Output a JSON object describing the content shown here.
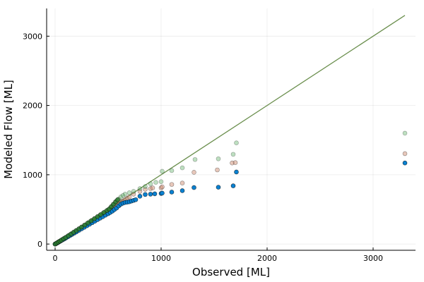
{
  "chart_data": {
    "type": "scatter",
    "title": "",
    "xlabel": "Observed [ML]",
    "ylabel": "Modeled Flow [ML]",
    "xlim": [
      -80,
      3400
    ],
    "ylim": [
      -90,
      3400
    ],
    "x_ticks": [
      0,
      1000,
      2000,
      3000
    ],
    "y_ticks": [
      0,
      1000,
      2000,
      3000
    ],
    "grid": true,
    "legend": "none",
    "reference_line": {
      "x": [
        0,
        3300
      ],
      "y": [
        0,
        3300
      ],
      "color": "#6b8f4e"
    },
    "series": [
      {
        "color": "#cf8f75",
        "opacity": 0.5,
        "points": [
          [
            0,
            0
          ],
          [
            10,
            8
          ],
          [
            20,
            17
          ],
          [
            30,
            27
          ],
          [
            40,
            36
          ],
          [
            55,
            50
          ],
          [
            70,
            63
          ],
          [
            85,
            77
          ],
          [
            100,
            90
          ],
          [
            120,
            108
          ],
          [
            140,
            126
          ],
          [
            160,
            144
          ],
          [
            180,
            162
          ],
          [
            200,
            180
          ],
          [
            225,
            203
          ],
          [
            250,
            226
          ],
          [
            275,
            249
          ],
          [
            300,
            272
          ],
          [
            325,
            295
          ],
          [
            350,
            318
          ],
          [
            375,
            340
          ],
          [
            400,
            362
          ],
          [
            425,
            385
          ],
          [
            450,
            408
          ],
          [
            475,
            430
          ],
          [
            500,
            452
          ],
          [
            520,
            470
          ],
          [
            540,
            500
          ],
          [
            560,
            530
          ],
          [
            580,
            560
          ],
          [
            600,
            590
          ],
          [
            620,
            610
          ],
          [
            640,
            620
          ],
          [
            660,
            640
          ],
          [
            680,
            660
          ],
          [
            700,
            680
          ],
          [
            740,
            720
          ],
          [
            800,
            760
          ],
          [
            850,
            790
          ],
          [
            900,
            800
          ],
          [
            920,
            810
          ],
          [
            1000,
            810
          ],
          [
            1010,
            825
          ],
          [
            1100,
            860
          ],
          [
            1200,
            880
          ],
          [
            1310,
            1035
          ],
          [
            1530,
            1070
          ],
          [
            1670,
            1170
          ],
          [
            1700,
            1175
          ],
          [
            3300,
            1305
          ]
        ]
      },
      {
        "color": "#41a34a",
        "opacity": 0.35,
        "points": [
          [
            0,
            0
          ],
          [
            10,
            9
          ],
          [
            20,
            19
          ],
          [
            30,
            29
          ],
          [
            40,
            39
          ],
          [
            55,
            54
          ],
          [
            70,
            68
          ],
          [
            85,
            83
          ],
          [
            100,
            97
          ],
          [
            120,
            117
          ],
          [
            140,
            137
          ],
          [
            160,
            157
          ],
          [
            180,
            177
          ],
          [
            200,
            197
          ],
          [
            225,
            221
          ],
          [
            250,
            246
          ],
          [
            275,
            271
          ],
          [
            300,
            296
          ],
          [
            325,
            321
          ],
          [
            350,
            346
          ],
          [
            375,
            371
          ],
          [
            400,
            395
          ],
          [
            425,
            420
          ],
          [
            450,
            445
          ],
          [
            475,
            470
          ],
          [
            500,
            495
          ],
          [
            520,
            520
          ],
          [
            540,
            550
          ],
          [
            560,
            580
          ],
          [
            580,
            620
          ],
          [
            600,
            650
          ],
          [
            620,
            680
          ],
          [
            640,
            700
          ],
          [
            660,
            720
          ],
          [
            700,
            740
          ],
          [
            740,
            760
          ],
          [
            800,
            800
          ],
          [
            850,
            830
          ],
          [
            900,
            870
          ],
          [
            950,
            890
          ],
          [
            1000,
            900
          ],
          [
            1010,
            1050
          ],
          [
            1100,
            1060
          ],
          [
            1200,
            1100
          ],
          [
            1320,
            1220
          ],
          [
            1540,
            1230
          ],
          [
            1680,
            1295
          ],
          [
            1710,
            1460
          ],
          [
            3300,
            1600
          ]
        ]
      },
      {
        "color": "#0a81d1",
        "opacity": 1.0,
        "points": [
          [
            0,
            0
          ],
          [
            10,
            7
          ],
          [
            20,
            16
          ],
          [
            30,
            25
          ],
          [
            40,
            34
          ],
          [
            55,
            47
          ],
          [
            70,
            60
          ],
          [
            85,
            73
          ],
          [
            100,
            86
          ],
          [
            120,
            104
          ],
          [
            140,
            122
          ],
          [
            160,
            140
          ],
          [
            180,
            158
          ],
          [
            200,
            175
          ],
          [
            225,
            198
          ],
          [
            250,
            220
          ],
          [
            275,
            242
          ],
          [
            300,
            264
          ],
          [
            325,
            286
          ],
          [
            350,
            308
          ],
          [
            375,
            330
          ],
          [
            400,
            352
          ],
          [
            425,
            374
          ],
          [
            450,
            395
          ],
          [
            475,
            417
          ],
          [
            500,
            438
          ],
          [
            520,
            456
          ],
          [
            540,
            475
          ],
          [
            560,
            498
          ],
          [
            580,
            520
          ],
          [
            600,
            550
          ],
          [
            620,
            575
          ],
          [
            640,
            590
          ],
          [
            660,
            600
          ],
          [
            680,
            605
          ],
          [
            700,
            610
          ],
          [
            720,
            620
          ],
          [
            740,
            630
          ],
          [
            760,
            640
          ],
          [
            800,
            690
          ],
          [
            850,
            715
          ],
          [
            900,
            720
          ],
          [
            940,
            725
          ],
          [
            1000,
            730
          ],
          [
            1010,
            735
          ],
          [
            1100,
            750
          ],
          [
            1200,
            770
          ],
          [
            1310,
            815
          ],
          [
            1540,
            820
          ],
          [
            1680,
            840
          ],
          [
            1710,
            1040
          ],
          [
            3300,
            1170
          ]
        ]
      },
      {
        "color": "#2e7d32",
        "opacity": 0.9,
        "points": [
          [
            0,
            0
          ],
          [
            15,
            14
          ],
          [
            30,
            28
          ],
          [
            45,
            42
          ],
          [
            60,
            57
          ],
          [
            80,
            76
          ],
          [
            100,
            95
          ],
          [
            125,
            120
          ],
          [
            150,
            145
          ],
          [
            175,
            170
          ],
          [
            200,
            195
          ],
          [
            225,
            220
          ],
          [
            250,
            245
          ],
          [
            280,
            275
          ],
          [
            310,
            305
          ],
          [
            340,
            335
          ],
          [
            370,
            365
          ],
          [
            400,
            395
          ],
          [
            430,
            425
          ],
          [
            460,
            455
          ],
          [
            490,
            485
          ],
          [
            510,
            505
          ],
          [
            530,
            540
          ],
          [
            550,
            575
          ],
          [
            570,
            610
          ],
          [
            590,
            640
          ]
        ]
      }
    ]
  }
}
